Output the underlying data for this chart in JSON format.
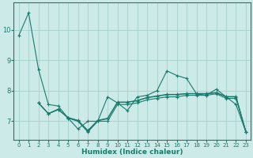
{
  "xlabel": "Humidex (Indice chaleur)",
  "bg_color": "#cceae7",
  "grid_color": "#aad4d0",
  "line_color": "#1a7a6e",
  "xlim": [
    -0.5,
    23.5
  ],
  "ylim": [
    6.4,
    10.9
  ],
  "yticks": [
    7,
    8,
    9,
    10
  ],
  "xticks": [
    0,
    1,
    2,
    3,
    4,
    5,
    6,
    7,
    8,
    9,
    10,
    11,
    12,
    13,
    14,
    15,
    16,
    17,
    18,
    19,
    20,
    21,
    22,
    23
  ],
  "series": [
    {
      "x": [
        0,
        1,
        2,
        3,
        4,
        5,
        6,
        7,
        8,
        9,
        10,
        11,
        12,
        13,
        14,
        15,
        16,
        17,
        18,
        19,
        20,
        21,
        22,
        23
      ],
      "y": [
        9.8,
        10.55,
        8.7,
        7.55,
        7.5,
        7.1,
        6.75,
        7.0,
        7.0,
        7.8,
        7.6,
        7.35,
        7.8,
        7.85,
        8.0,
        8.65,
        8.5,
        8.4,
        7.9,
        7.85,
        8.05,
        7.8,
        7.55,
        6.65
      ]
    },
    {
      "x": [
        2,
        3,
        4,
        5,
        6,
        7,
        8,
        9,
        10,
        11,
        12,
        13,
        14,
        15,
        16,
        17,
        18,
        19,
        20,
        21,
        22,
        23
      ],
      "y": [
        7.6,
        7.25,
        7.4,
        7.1,
        7.0,
        6.65,
        7.0,
        7.0,
        7.55,
        7.55,
        7.6,
        7.7,
        7.75,
        7.8,
        7.8,
        7.85,
        7.85,
        7.85,
        7.9,
        7.75,
        7.75,
        6.65
      ]
    },
    {
      "x": [
        2,
        3,
        4,
        5,
        6,
        7,
        8,
        9,
        10,
        11,
        12,
        13,
        14,
        15,
        16,
        17,
        18,
        19,
        20,
        21,
        22,
        23
      ],
      "y": [
        7.6,
        7.25,
        7.38,
        7.12,
        7.02,
        6.68,
        7.02,
        7.08,
        7.62,
        7.62,
        7.67,
        7.77,
        7.82,
        7.87,
        7.87,
        7.9,
        7.9,
        7.9,
        7.93,
        7.8,
        7.8,
        6.65
      ]
    },
    {
      "x": [
        2,
        3,
        4,
        5,
        6,
        7,
        8,
        9,
        10,
        11,
        12,
        13,
        14,
        15,
        16,
        17,
        18,
        19,
        20,
        21,
        22,
        23
      ],
      "y": [
        7.6,
        7.25,
        7.38,
        7.12,
        7.03,
        6.7,
        7.03,
        7.1,
        7.63,
        7.63,
        7.68,
        7.78,
        7.83,
        7.88,
        7.88,
        7.91,
        7.91,
        7.91,
        7.94,
        7.81,
        7.81,
        6.66
      ]
    }
  ]
}
